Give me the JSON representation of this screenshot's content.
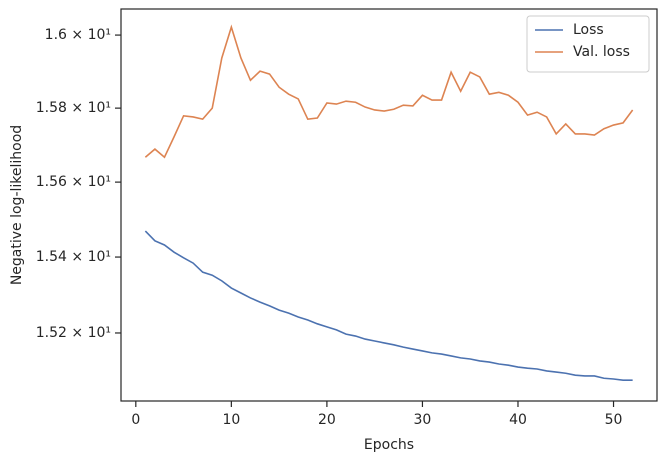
{
  "chart_data": {
    "type": "line",
    "x_label": "Epochs",
    "y_label": "Negative log-likelihood",
    "x": [
      1,
      2,
      3,
      4,
      5,
      6,
      7,
      8,
      9,
      10,
      11,
      12,
      13,
      14,
      15,
      16,
      17,
      18,
      19,
      20,
      21,
      22,
      23,
      24,
      25,
      26,
      27,
      28,
      29,
      30,
      31,
      32,
      33,
      34,
      35,
      36,
      37,
      38,
      39,
      40,
      41,
      42,
      43,
      44,
      45,
      46,
      47,
      48,
      49,
      50,
      51,
      52
    ],
    "series": [
      {
        "name": "Loss",
        "color": "#4c72b0",
        "values": [
          15.469,
          15.443,
          15.432,
          15.413,
          15.398,
          15.384,
          15.36,
          15.352,
          15.337,
          15.318,
          15.305,
          15.292,
          15.281,
          15.271,
          15.26,
          15.252,
          15.242,
          15.234,
          15.224,
          15.216,
          15.208,
          15.197,
          15.192,
          15.184,
          15.179,
          15.174,
          15.169,
          15.163,
          15.158,
          15.153,
          15.148,
          15.145,
          15.14,
          15.135,
          15.132,
          15.127,
          15.124,
          15.119,
          15.116,
          15.111,
          15.108,
          15.106,
          15.101,
          15.098,
          15.095,
          15.09,
          15.088,
          15.088,
          15.082,
          15.08,
          15.077,
          15.077
        ]
      },
      {
        "name": "Val. loss",
        "color": "#dd8452",
        "values": [
          15.667,
          15.689,
          15.667,
          15.722,
          15.779,
          15.776,
          15.77,
          15.8,
          15.937,
          16.022,
          15.937,
          15.876,
          15.901,
          15.893,
          15.857,
          15.838,
          15.825,
          15.77,
          15.773,
          15.814,
          15.811,
          15.819,
          15.816,
          15.803,
          15.795,
          15.792,
          15.797,
          15.808,
          15.806,
          15.835,
          15.822,
          15.822,
          15.898,
          15.846,
          15.898,
          15.885,
          15.838,
          15.843,
          15.835,
          15.816,
          15.781,
          15.789,
          15.776,
          15.73,
          15.757,
          15.73,
          15.73,
          15.727,
          15.744,
          15.754,
          15.76,
          15.795
        ]
      }
    ],
    "xlim": [
      -1.55,
      54.55
    ],
    "xticks": [
      0,
      10,
      20,
      30,
      40,
      50
    ],
    "ylim": [
      15.023,
      16.072
    ],
    "y_scale": "log",
    "yticks": [
      {
        "value": 15.2,
        "label": "1.52 × 10¹"
      },
      {
        "value": 15.4,
        "label": "1.54 × 10¹"
      },
      {
        "value": 15.6,
        "label": "1.56 × 10¹"
      },
      {
        "value": 15.8,
        "label": "1.58 × 10¹"
      },
      {
        "value": 16.0,
        "label": "1.6 × 10¹"
      }
    ],
    "legend": "upper right"
  }
}
